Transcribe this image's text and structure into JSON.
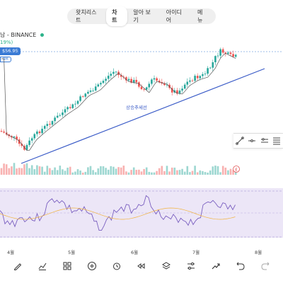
{
  "tabs": [
    "왓치리스트",
    "차트",
    "알아 보기",
    "아이디어",
    "메뉴"
  ],
  "active_tab": 1,
  "symbol": "남 - BINANCE",
  "change": "19%)",
  "price": "$56.95",
  "price_sub": "9H",
  "trend_label": "상승추세선",
  "months": [
    "4월",
    "5월",
    "6월",
    "7월",
    "8월"
  ],
  "draw_tools": [
    "diagonal-line-icon",
    "horizontal-ray-icon",
    "horizontal-lines-icon",
    "fib-lines-icon"
  ],
  "bottom_tools": [
    "pencil-icon",
    "indicator-icon",
    "grid-icon",
    "add-icon",
    "alarm-icon",
    "replay-icon",
    "layers-icon",
    "settings-sliders-icon",
    "trend-icon",
    "undo-icon",
    "redo-icon"
  ],
  "colors": {
    "up": "#26a69a",
    "down": "#ef5350",
    "trend": "#3a5bc7",
    "ma": "#7b61c9"
  }
}
